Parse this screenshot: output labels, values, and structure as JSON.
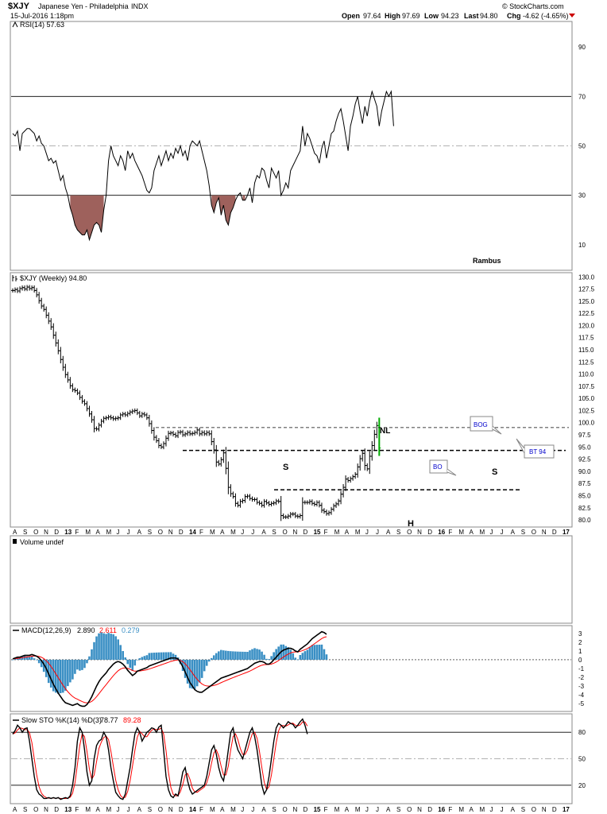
{
  "header": {
    "symbol": "$XJY",
    "name": "Japanese Yen - Philadelphia",
    "exchange": "INDX",
    "timestamp": "15-Jul-2016 1:18pm",
    "copyright": "© StockCharts.com",
    "quote": {
      "open_label": "Open",
      "open": "97.64",
      "high_label": "High",
      "high": "97.69",
      "low_label": "Low",
      "low": "94.23",
      "last_label": "Last",
      "last": "94.80",
      "chg_label": "Chg",
      "chg": "-4.62 (-4.65%)"
    }
  },
  "author": "Rambus",
  "colors": {
    "price": "#000000",
    "signal": "#ff0000",
    "histogram": "#3a8fc4",
    "rsi_fill": "#9e615c",
    "last_bar": "#00aa00",
    "callout_text": "#0000cc",
    "grid": "#999999"
  },
  "chart_data": [
    {
      "type": "line",
      "panel": "rsi",
      "legend": "RSI(14) 57.63",
      "ylim": [
        0,
        100
      ],
      "ticks": [
        10,
        30,
        50,
        70,
        90
      ],
      "levels": [
        30,
        50,
        70
      ],
      "x_start_month": "2012-08",
      "bars_per_month": 4.33,
      "values": [
        55,
        54,
        56,
        48,
        55,
        56,
        57,
        57,
        56,
        55,
        52,
        54,
        51,
        50,
        47,
        44,
        45,
        43,
        44,
        40,
        36,
        38,
        33,
        30,
        25,
        22,
        18,
        16,
        15,
        14,
        14,
        16,
        12,
        15,
        18,
        19,
        18,
        15,
        24,
        30,
        44,
        50,
        46,
        44,
        42,
        46,
        44,
        40,
        48,
        45,
        47,
        44,
        42,
        40,
        38,
        35,
        32,
        31,
        33,
        40,
        43,
        46,
        42,
        45,
        48,
        44,
        47,
        45,
        49,
        47,
        50,
        46,
        48,
        44,
        50,
        52,
        51,
        50,
        52,
        48,
        44,
        40,
        34,
        26,
        23,
        27,
        29,
        22,
        26,
        20,
        18,
        23,
        25,
        28,
        30,
        31,
        28,
        28,
        30,
        33,
        27,
        35,
        38,
        37,
        41,
        40,
        36,
        33,
        41,
        39,
        37,
        40,
        30,
        32,
        35,
        33,
        40,
        42,
        44,
        46,
        48,
        58,
        50,
        55,
        53,
        50,
        47,
        46,
        43,
        49,
        52,
        45,
        50,
        55,
        56,
        60,
        63,
        65,
        60,
        54,
        48,
        58,
        62,
        67,
        70,
        64,
        59,
        66,
        62,
        68,
        72,
        69,
        66,
        58,
        64,
        68,
        72,
        70,
        72,
        58
      ]
    },
    {
      "type": "bar",
      "panel": "price",
      "legend": "$XJY (Weekly) 94.80",
      "ylim": [
        78.7,
        130.7
      ],
      "ticks": [
        80.0,
        82.5,
        85.0,
        87.5,
        90.0,
        92.5,
        95.0,
        97.5,
        100.0,
        102.5,
        105.0,
        107.5,
        110.0,
        112.5,
        115.0,
        117.5,
        120.0,
        122.5,
        125.0,
        127.5,
        130.0
      ],
      "x_start_month": "2012-08",
      "bars_per_month": 4.33,
      "closes": [
        127.2,
        127.4,
        127.1,
        127.6,
        127.8,
        127.5,
        127.9,
        127.6,
        127.8,
        127.2,
        126.3,
        125.1,
        124.0,
        123.3,
        122.1,
        120.9,
        119.7,
        118.0,
        116.4,
        114.8,
        113.0,
        111.4,
        109.9,
        108.8,
        107.6,
        106.8,
        106.6,
        106.1,
        105.2,
        104.4,
        103.9,
        102.9,
        101.8,
        100.6,
        98.8,
        98.7,
        99.5,
        100.3,
        100.9,
        101.0,
        101.2,
        101.0,
        100.8,
        100.9,
        101.0,
        101.6,
        101.8,
        101.6,
        101.9,
        102.2,
        102.4,
        102.5,
        102.0,
        101.4,
        101.8,
        101.6,
        101.0,
        99.8,
        98.4,
        97.0,
        96.3,
        95.3,
        95.0,
        95.7,
        96.8,
        97.8,
        97.9,
        97.6,
        97.3,
        98.0,
        98.1,
        97.5,
        97.7,
        98.0,
        97.7,
        97.8,
        98.0,
        98.5,
        97.7,
        98.0,
        97.7,
        98.0,
        97.7,
        96.1,
        94.4,
        91.9,
        91.5,
        92.4,
        93.8,
        90.6,
        86.7,
        85.4,
        84.8,
        83.4,
        83.0,
        83.8,
        84.0,
        84.8,
        84.9,
        84.4,
        84.2,
        84.2,
        83.6,
        83.4,
        83.0,
        83.8,
        83.5,
        83.2,
        83.4,
        83.5,
        83.9,
        83.8,
        80.9,
        80.6,
        80.6,
        80.8,
        81.2,
        81.2,
        80.8,
        80.7,
        80.9,
        83.6,
        83.6,
        83.6,
        83.8,
        83.4,
        83.2,
        83.6,
        83.0,
        82.0,
        81.7,
        81.3,
        81.5,
        82.2,
        82.9,
        83.3,
        83.9,
        85.3,
        86.7,
        88.4,
        88.1,
        88.5,
        88.9,
        89.4,
        90.9,
        92.6,
        93.7,
        91.2,
        90.5,
        93.1,
        95.3,
        97.6,
        99.4,
        94.8
      ],
      "annotations": {
        "neckline": {
          "label": "NL",
          "value": 94.3
        },
        "top_line": {
          "value": 99.0
        },
        "bottom_line": {
          "value": 86.2
        },
        "left_shoulder": "S",
        "head": "H",
        "right_shoulder": "S",
        "callouts": [
          "BO",
          "BOG",
          "BT 94"
        ]
      }
    },
    {
      "type": "line",
      "panel": "volume",
      "legend": "Volume undef"
    },
    {
      "type": "line",
      "panel": "macd",
      "legend": {
        "text": "MACD(12,26,9)",
        "macd": "2.890",
        "signal": "2.611",
        "hist": "0.279"
      },
      "ylim": [
        -5.8,
        3.8
      ],
      "ticks": [
        -5,
        -4,
        -3,
        -2,
        -1,
        0,
        1,
        2,
        3
      ],
      "x_start_month": "2012-08",
      "bars_per_month": 4.33,
      "macd": [
        0.1,
        0.2,
        0.3,
        0.3,
        0.4,
        0.5,
        0.5,
        0.5,
        0.6,
        0.5,
        0.4,
        0.2,
        -0.1,
        -0.5,
        -1.0,
        -1.6,
        -2.2,
        -2.8,
        -3.3,
        -3.8,
        -4.2,
        -4.6,
        -4.9,
        -5.0,
        -5.1,
        -5.2,
        -5.1,
        -5.0,
        -5.2,
        -5.3,
        -5.3,
        -5.1,
        -4.7,
        -4.2,
        -3.6,
        -3.0,
        -2.5,
        -2.1,
        -1.8,
        -1.5,
        -1.1,
        -0.8,
        -0.5,
        -0.3,
        -0.2,
        -0.3,
        -0.5,
        -0.8,
        -1.2,
        -1.5,
        -1.8,
        -1.6,
        -1.3,
        -1.2,
        -1.1,
        -1.0,
        -0.9,
        -0.7,
        -0.6,
        -0.5,
        -0.4,
        -0.3,
        -0.2,
        -0.1,
        0.0,
        0.1,
        0.2,
        0.2,
        0.2,
        0.1,
        -0.3,
        -0.8,
        -1.4,
        -2.0,
        -2.6,
        -3.0,
        -3.4,
        -3.6,
        -3.7,
        -3.7,
        -3.5,
        -3.3,
        -3.1,
        -2.9,
        -2.7,
        -2.5,
        -2.3,
        -2.1,
        -2.0,
        -1.9,
        -1.8,
        -1.7,
        -1.6,
        -1.5,
        -1.4,
        -1.3,
        -1.2,
        -1.1,
        -1.0,
        -0.8,
        -0.6,
        -0.4,
        -0.3,
        -0.2,
        -0.2,
        -0.3,
        -0.5,
        -0.5,
        -0.3,
        0.0,
        0.3,
        0.6,
        0.9,
        1.1,
        1.2,
        1.3,
        1.3,
        1.2,
        1.0,
        0.9,
        1.2,
        1.4,
        1.6,
        1.8,
        2.1,
        2.4,
        2.6,
        2.8,
        3.0,
        3.2,
        3.1,
        2.9
      ]
    },
    {
      "type": "line",
      "panel": "stochastic",
      "legend": {
        "text": "Slow STO %K(14) %D(3)",
        "k": "78.77",
        "d": "89.28"
      },
      "ylim": [
        0,
        100
      ],
      "ticks": [
        20,
        50,
        80
      ],
      "levels": [
        20,
        50,
        80
      ],
      "x_start_month": "2012-08",
      "bars_per_month": 4.33,
      "k": [
        78,
        82,
        88,
        85,
        80,
        84,
        85,
        70,
        50,
        30,
        15,
        10,
        8,
        5,
        5,
        6,
        5,
        6,
        5,
        6,
        4,
        5,
        6,
        5,
        8,
        20,
        40,
        70,
        85,
        80,
        60,
        35,
        20,
        25,
        50,
        65,
        70,
        72,
        80,
        75,
        60,
        40,
        25,
        12,
        8,
        5,
        4,
        10,
        25,
        40,
        60,
        78,
        85,
        80,
        70,
        75,
        80,
        82,
        85,
        84,
        80,
        86,
        88,
        60,
        30,
        15,
        8,
        6,
        10,
        8,
        20,
        35,
        40,
        25,
        15,
        10,
        12,
        14,
        16,
        18,
        20,
        30,
        45,
        60,
        65,
        55,
        40,
        30,
        25,
        40,
        60,
        80,
        85,
        70,
        60,
        55,
        50,
        60,
        70,
        80,
        85,
        75,
        60,
        40,
        20,
        10,
        15,
        30,
        50,
        70,
        85,
        90,
        88,
        85,
        88,
        92,
        90,
        89,
        85,
        88,
        92,
        95,
        88,
        78
      ]
    }
  ],
  "x_axis": {
    "labels": [
      "A",
      "S",
      "O",
      "N",
      "D",
      "13",
      "F",
      "M",
      "A",
      "M",
      "J",
      "J",
      "A",
      "S",
      "O",
      "N",
      "D",
      "14",
      "F",
      "M",
      "A",
      "M",
      "J",
      "J",
      "A",
      "S",
      "O",
      "N",
      "D",
      "15",
      "F",
      "M",
      "A",
      "M",
      "J",
      "J",
      "A",
      "S",
      "O",
      "N",
      "D",
      "16",
      "F",
      "M",
      "A",
      "M",
      "J",
      "J",
      "A",
      "S",
      "O",
      "N",
      "D",
      "17"
    ],
    "bold": [
      "13",
      "14",
      "15",
      "16",
      "17"
    ]
  }
}
